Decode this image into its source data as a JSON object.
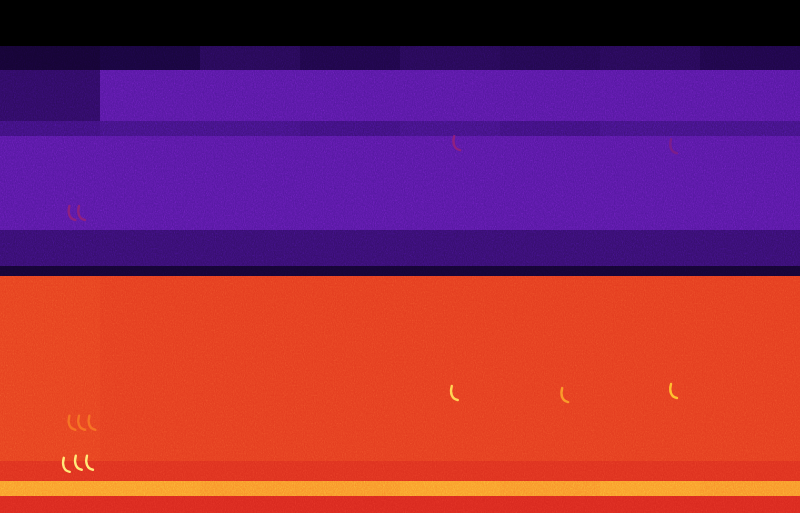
{
  "chart_data": {
    "type": "heatmap",
    "color": "inferno",
    "tick_labels": false,
    "grid": false,
    "xlim": [
      0,
      1
    ],
    "ylim": [
      0,
      1
    ],
    "zlim": [
      0,
      1
    ],
    "x": [
      0,
      0.125,
      0.25,
      0.375,
      0.5,
      0.625,
      0.75,
      0.875,
      1
    ],
    "y": [
      0,
      0.035,
      0.064,
      0.103,
      0.464,
      0.483,
      0.552,
      0.737,
      0.766,
      0.864,
      0.912,
      1
    ],
    "cells": [
      [
        0.6,
        0.6,
        0.6,
        0.6,
        0.6,
        0.6,
        0.6,
        0.6
      ],
      [
        0.8,
        0.8,
        0.79,
        0.79,
        0.8,
        0.79,
        0.8,
        0.79
      ],
      [
        0.62,
        0.62,
        0.62,
        0.62,
        0.62,
        0.62,
        0.62,
        0.62
      ],
      [
        0.66,
        0.65,
        0.65,
        0.65,
        0.65,
        0.65,
        0.65,
        0.65
      ],
      [
        0.12,
        0.12,
        0.12,
        0.12,
        0.12,
        0.12,
        0.12,
        0.12
      ],
      [
        0.22,
        0.22,
        0.22,
        0.22,
        0.22,
        0.22,
        0.22,
        0.22
      ],
      [
        0.3,
        0.3,
        0.3,
        0.3,
        0.3,
        0.3,
        0.3,
        0.3
      ],
      [
        0.24,
        0.25,
        0.25,
        0.24,
        0.25,
        0.24,
        0.25,
        0.25
      ],
      [
        0.2,
        0.3,
        0.3,
        0.3,
        0.3,
        0.3,
        0.3,
        0.3
      ],
      [
        0.12,
        0.14,
        0.18,
        0.16,
        0.18,
        0.17,
        0.18,
        0.16
      ],
      [
        0,
        0,
        0,
        0,
        0,
        0,
        0,
        0
      ]
    ],
    "points": {
      "x": [
        0.081,
        0.096,
        0.11,
        0.088,
        0.1,
        0.113,
        0.566,
        0.704,
        0.84,
        0.569,
        0.84,
        0.088,
        0.1
      ],
      "y": [
        0.09,
        0.094,
        0.094,
        0.172,
        0.172,
        0.172,
        0.23,
        0.226,
        0.234,
        0.717,
        0.711,
        0.581,
        0.581
      ],
      "values": [
        0.95,
        0.95,
        0.95,
        0.75,
        0.75,
        0.75,
        0.9,
        0.8,
        0.85,
        0.45,
        0.4,
        0.45,
        0.45
      ]
    }
  }
}
